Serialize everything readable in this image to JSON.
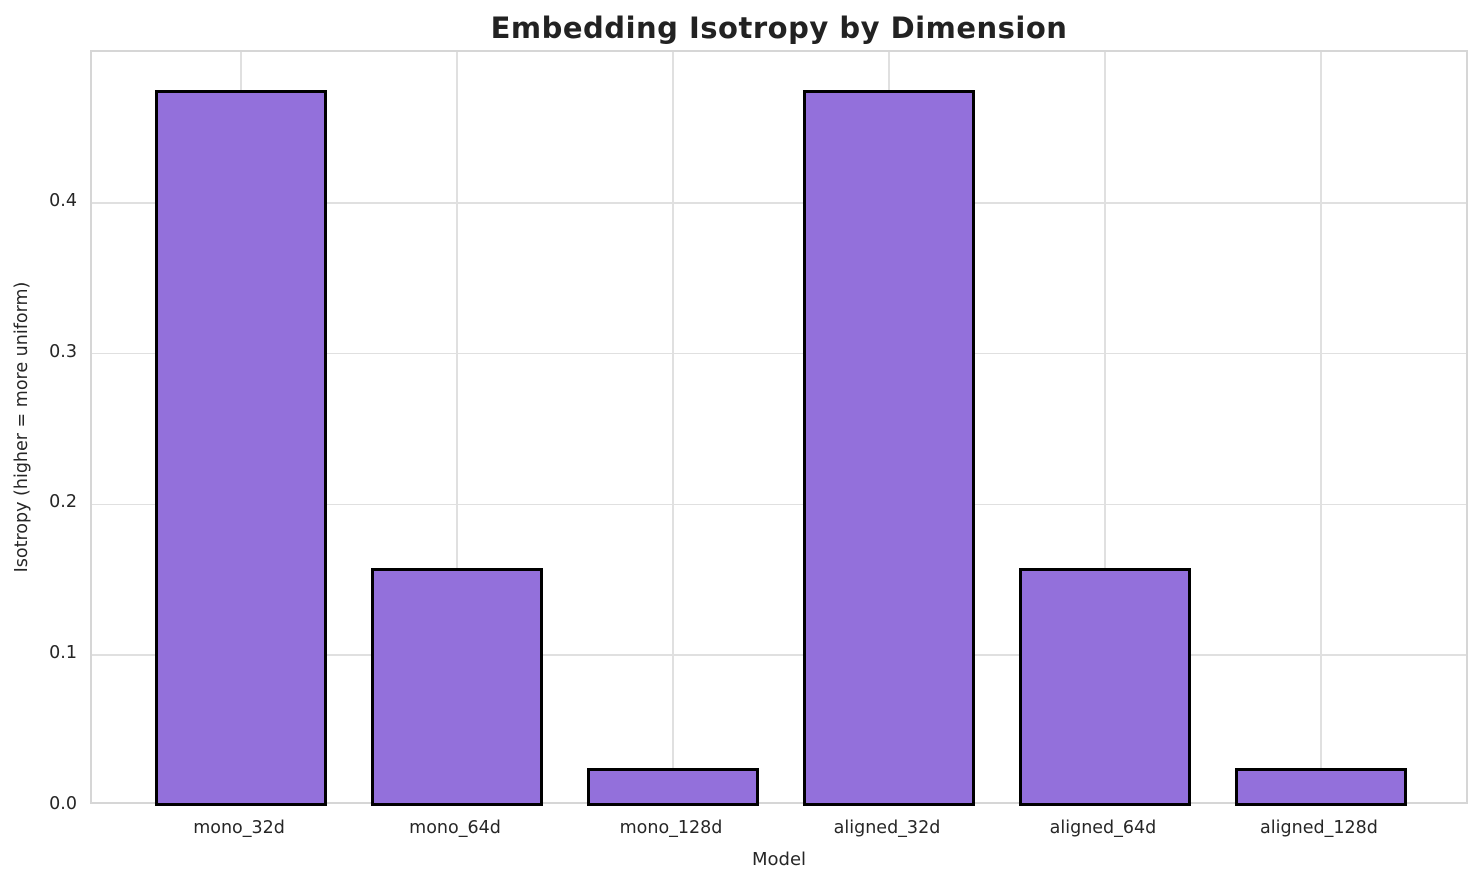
{
  "chart_data": {
    "type": "bar",
    "title": "Embedding Isotropy by Dimension",
    "xlabel": "Model",
    "ylabel": "Isotropy (higher = more uniform)",
    "categories": [
      "mono_32d",
      "mono_64d",
      "mono_128d",
      "aligned_32d",
      "aligned_64d",
      "aligned_128d"
    ],
    "values": [
      0.475,
      0.158,
      0.025,
      0.475,
      0.158,
      0.025
    ],
    "ylim": [
      0,
      0.5
    ],
    "yticks": [
      0,
      0.1,
      0.2,
      0.3,
      0.4
    ],
    "ytick_labels": [
      "0.0",
      "0.1",
      "0.2",
      "0.3",
      "0.4"
    ],
    "grid": "on",
    "legend_position": "none",
    "colors": {
      "bar_fill": "#9370DB",
      "bar_edge": "#000000",
      "gridline": "#e0e0e0",
      "spine": "#d6d6d6",
      "text": "#262626",
      "background": "#ffffff"
    }
  }
}
